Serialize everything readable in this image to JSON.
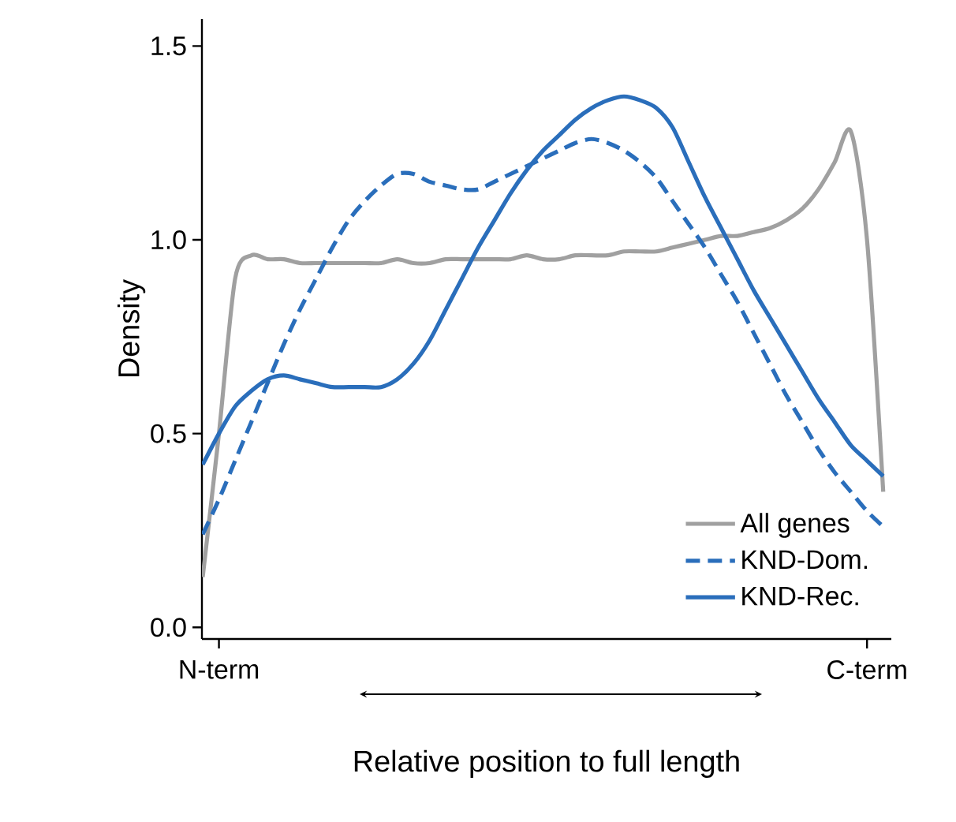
{
  "chart_data": {
    "type": "line",
    "xlabel": "Relative position to full length",
    "ylabel": "Density",
    "categories": [
      null,
      "N-term",
      null,
      null,
      null,
      null,
      null,
      null,
      null,
      null,
      null,
      null,
      null,
      null,
      null,
      null,
      null,
      null,
      null,
      null,
      null,
      null,
      null,
      null,
      null,
      null,
      null,
      null,
      null,
      null,
      null,
      null,
      null,
      null,
      null,
      null,
      null,
      null,
      null,
      null,
      null,
      "C-term",
      null
    ],
    "ylim": [
      -0.03,
      1.57
    ],
    "yticks": [
      {
        "value": 0,
        "label": "0.0"
      },
      {
        "value": 0.5,
        "label": "0.5"
      },
      {
        "value": 1,
        "label": "1.0"
      },
      1.5
    ],
    "legend": "bottom right",
    "marker": "none",
    "series": [
      {
        "name": "All genes",
        "color": "#a0a0a0",
        "line_style": "solid",
        "values": [
          0.13,
          0.5,
          0.9,
          0.96,
          0.95,
          0.95,
          0.94,
          0.94,
          0.94,
          0.94,
          0.94,
          0.94,
          0.95,
          0.94,
          0.94,
          0.95,
          0.95,
          0.95,
          0.95,
          0.95,
          0.96,
          0.95,
          0.95,
          0.96,
          0.96,
          0.96,
          0.97,
          0.97,
          0.97,
          0.98,
          0.99,
          1.0,
          1.01,
          1.01,
          1.02,
          1.03,
          1.05,
          1.08,
          1.13,
          1.2,
          1.28,
          1.0,
          0.35
        ]
      },
      {
        "name": "KND-Dom.",
        "color": "#2a6ebb",
        "line_style": "dashed",
        "values": [
          0.24,
          0.33,
          0.43,
          0.53,
          0.63,
          0.73,
          0.82,
          0.9,
          0.98,
          1.05,
          1.1,
          1.14,
          1.17,
          1.17,
          1.15,
          1.14,
          1.13,
          1.13,
          1.15,
          1.17,
          1.19,
          1.21,
          1.23,
          1.25,
          1.26,
          1.25,
          1.23,
          1.2,
          1.16,
          1.1,
          1.04,
          0.98,
          0.91,
          0.84,
          0.76,
          0.68,
          0.6,
          0.53,
          0.46,
          0.4,
          0.35,
          0.3,
          0.26
        ]
      },
      {
        "name": "KND-Rec.",
        "color": "#2a6ebb",
        "line_style": "solid",
        "values": [
          0.42,
          0.5,
          0.57,
          0.61,
          0.64,
          0.65,
          0.64,
          0.63,
          0.62,
          0.62,
          0.62,
          0.62,
          0.64,
          0.68,
          0.74,
          0.82,
          0.9,
          0.98,
          1.05,
          1.12,
          1.18,
          1.23,
          1.27,
          1.31,
          1.34,
          1.36,
          1.37,
          1.36,
          1.34,
          1.29,
          1.2,
          1.11,
          1.03,
          0.95,
          0.87,
          0.8,
          0.73,
          0.66,
          0.59,
          0.53,
          0.47,
          0.43,
          0.39
        ]
      }
    ]
  }
}
